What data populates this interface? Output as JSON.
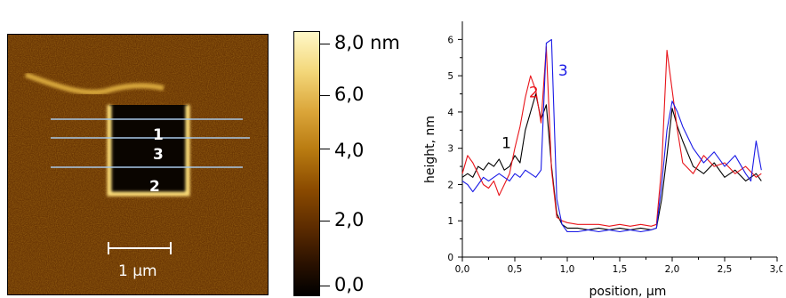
{
  "afm_image": {
    "scale_bar_label": "1 µm",
    "line_labels": [
      "1",
      "3",
      "2"
    ]
  },
  "colorbar": {
    "labels": [
      "8,0 nm",
      "6,0",
      "4,0",
      "2,0",
      "0,0"
    ],
    "values": [
      8.0,
      6.0,
      4.0,
      2.0,
      0.0
    ]
  },
  "chart_data": {
    "type": "line",
    "xlabel": "position, µm",
    "ylabel": "height, nm",
    "xlim": [
      0,
      3.0
    ],
    "ylim": [
      0,
      6.5
    ],
    "x_ticks": [
      0,
      0.5,
      1.0,
      1.5,
      2.0,
      2.5,
      3.0
    ],
    "x_tick_labels": [
      "0,0",
      "0,5",
      "1,0",
      "1,5",
      "2,0",
      "2,5",
      "3,0"
    ],
    "y_ticks": [
      0,
      1,
      2,
      3,
      4,
      5,
      6
    ],
    "y_tick_labels": [
      "0",
      "1",
      "2",
      "3",
      "4",
      "5",
      "6"
    ],
    "series": [
      {
        "name": "1",
        "color": "#000000",
        "label_position": [
          0.42,
          3.0
        ],
        "x": [
          0.0,
          0.05,
          0.1,
          0.15,
          0.2,
          0.25,
          0.3,
          0.35,
          0.4,
          0.45,
          0.5,
          0.55,
          0.6,
          0.65,
          0.7,
          0.75,
          0.8,
          0.85,
          0.9,
          0.95,
          1.0,
          1.1,
          1.2,
          1.3,
          1.4,
          1.5,
          1.6,
          1.7,
          1.8,
          1.85,
          1.9,
          1.95,
          2.0,
          2.05,
          2.1,
          2.2,
          2.3,
          2.4,
          2.5,
          2.6,
          2.7,
          2.8,
          2.85
        ],
        "y": [
          2.2,
          2.3,
          2.2,
          2.5,
          2.4,
          2.6,
          2.5,
          2.7,
          2.4,
          2.5,
          2.8,
          2.6,
          3.5,
          4.0,
          4.5,
          3.8,
          4.2,
          2.5,
          1.2,
          0.9,
          0.8,
          0.8,
          0.75,
          0.8,
          0.75,
          0.8,
          0.75,
          0.8,
          0.75,
          0.8,
          1.6,
          2.8,
          4.1,
          3.6,
          3.2,
          2.5,
          2.3,
          2.6,
          2.2,
          2.4,
          2.1,
          2.3,
          2.1
        ]
      },
      {
        "name": "2",
        "color": "#e8141a",
        "label_position": [
          0.68,
          4.4
        ],
        "x": [
          0.0,
          0.05,
          0.1,
          0.15,
          0.2,
          0.25,
          0.3,
          0.35,
          0.4,
          0.45,
          0.5,
          0.55,
          0.6,
          0.65,
          0.7,
          0.75,
          0.8,
          0.85,
          0.9,
          0.95,
          1.0,
          1.1,
          1.2,
          1.3,
          1.4,
          1.5,
          1.6,
          1.7,
          1.8,
          1.85,
          1.9,
          1.95,
          2.0,
          2.05,
          2.1,
          2.2,
          2.3,
          2.4,
          2.5,
          2.6,
          2.7,
          2.8,
          2.85
        ],
        "y": [
          2.3,
          2.8,
          2.6,
          2.3,
          2.0,
          1.9,
          2.1,
          1.7,
          2.0,
          2.3,
          3.0,
          3.6,
          4.4,
          5.0,
          4.6,
          3.7,
          5.8,
          2.4,
          1.1,
          1.0,
          0.95,
          0.9,
          0.9,
          0.9,
          0.85,
          0.9,
          0.85,
          0.9,
          0.85,
          0.9,
          2.5,
          5.7,
          4.6,
          3.5,
          2.6,
          2.3,
          2.8,
          2.5,
          2.6,
          2.3,
          2.5,
          2.2,
          2.3
        ]
      },
      {
        "name": "3",
        "color": "#1a1ae6",
        "label_position": [
          0.96,
          5.0
        ],
        "x": [
          0.0,
          0.05,
          0.1,
          0.15,
          0.2,
          0.25,
          0.3,
          0.35,
          0.4,
          0.45,
          0.5,
          0.55,
          0.6,
          0.65,
          0.7,
          0.75,
          0.8,
          0.85,
          0.9,
          0.95,
          1.0,
          1.1,
          1.2,
          1.3,
          1.4,
          1.5,
          1.6,
          1.7,
          1.8,
          1.85,
          1.9,
          1.95,
          2.0,
          2.05,
          2.1,
          2.2,
          2.3,
          2.4,
          2.5,
          2.6,
          2.7,
          2.75,
          2.8,
          2.85
        ],
        "y": [
          2.1,
          2.0,
          1.8,
          2.0,
          2.2,
          2.1,
          2.2,
          2.3,
          2.2,
          2.1,
          2.3,
          2.2,
          2.4,
          2.3,
          2.2,
          2.4,
          5.9,
          6.0,
          1.6,
          0.9,
          0.7,
          0.7,
          0.75,
          0.7,
          0.75,
          0.7,
          0.75,
          0.7,
          0.75,
          0.8,
          2.0,
          3.5,
          4.3,
          4.0,
          3.6,
          3.0,
          2.6,
          2.9,
          2.5,
          2.8,
          2.3,
          2.1,
          3.2,
          2.4
        ]
      }
    ]
  }
}
